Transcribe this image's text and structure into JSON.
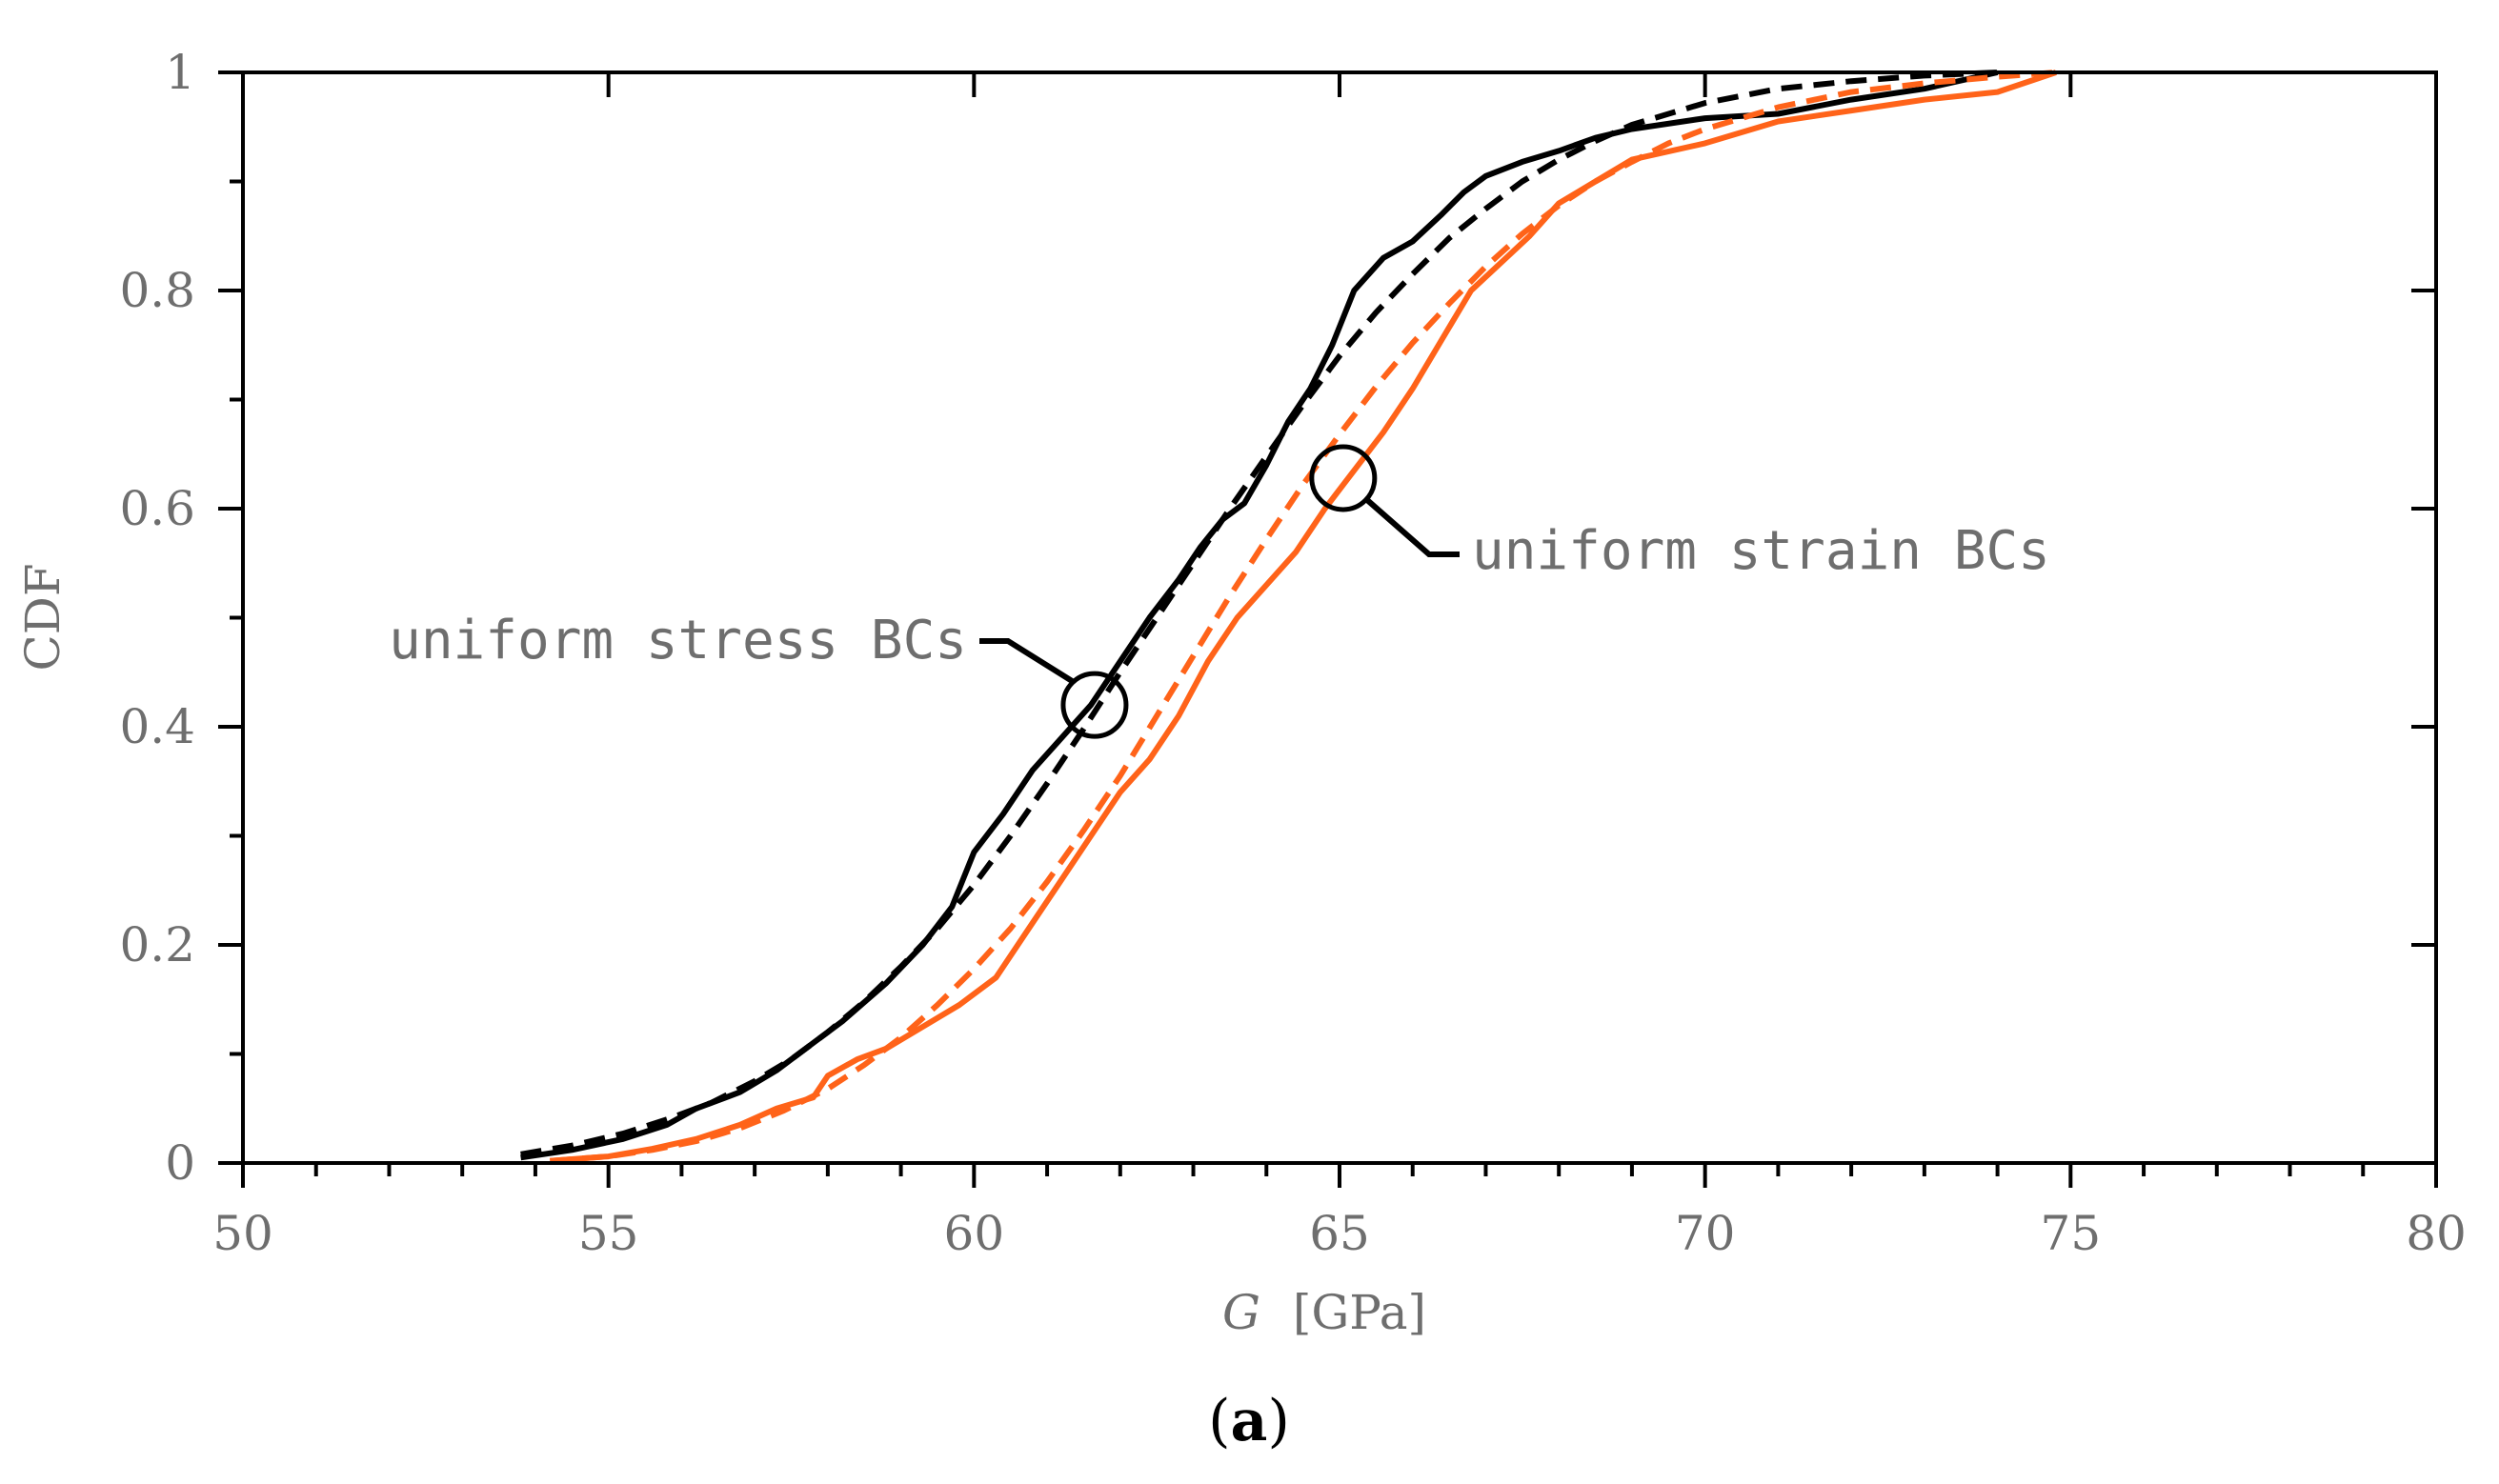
{
  "chart_data": {
    "type": "line",
    "title": "",
    "xlabel": "G",
    "xlabel_unit": "[GPa]",
    "ylabel": "CDF",
    "xlim": [
      50,
      80
    ],
    "ylim": [
      0,
      1
    ],
    "x_ticks": [
      50,
      55,
      60,
      65,
      70,
      75,
      80
    ],
    "y_ticks": [
      0,
      0.2,
      0.4,
      0.6,
      0.8,
      1
    ],
    "x_tick_labels": [
      "50",
      "55",
      "60",
      "65",
      "70",
      "75",
      "80"
    ],
    "y_tick_labels": [
      "0",
      "0.2",
      "0.4",
      "0.6",
      "0.8",
      "1"
    ],
    "grid": false,
    "series": [
      {
        "name": "uniform stress BCs (empirical)",
        "color": "#000000",
        "style": "solid",
        "x": [
          53.8,
          54.5,
          55.2,
          55.8,
          56.2,
          56.8,
          57.3,
          57.8,
          58.2,
          58.8,
          59.3,
          59.7,
          60.0,
          60.4,
          60.8,
          61.2,
          61.6,
          62.0,
          62.4,
          62.8,
          63.1,
          63.4,
          63.7,
          64.0,
          64.3,
          64.6,
          64.9,
          65.2,
          65.6,
          66.0,
          66.4,
          66.7,
          67.0,
          67.5,
          68.0,
          68.5,
          69.0,
          70.0,
          71.0,
          72.0,
          73.0,
          74.0
        ],
        "y": [
          0.005,
          0.012,
          0.022,
          0.035,
          0.05,
          0.065,
          0.085,
          0.11,
          0.13,
          0.165,
          0.2,
          0.235,
          0.285,
          0.32,
          0.36,
          0.39,
          0.42,
          0.46,
          0.5,
          0.535,
          0.565,
          0.59,
          0.605,
          0.64,
          0.68,
          0.71,
          0.75,
          0.8,
          0.83,
          0.845,
          0.87,
          0.89,
          0.905,
          0.918,
          0.928,
          0.94,
          0.948,
          0.958,
          0.962,
          0.975,
          0.985,
          1.0
        ]
      },
      {
        "name": "uniform stress BCs (fit)",
        "color": "#000000",
        "style": "dashed",
        "x": [
          53.8,
          54.5,
          55.2,
          55.8,
          56.4,
          57.0,
          57.5,
          58.0,
          58.5,
          59.0,
          59.5,
          60.0,
          60.5,
          61.0,
          61.5,
          62.0,
          62.5,
          63.0,
          63.5,
          64.0,
          64.5,
          65.0,
          65.5,
          66.0,
          66.5,
          67.0,
          67.5,
          68.0,
          68.5,
          69.0,
          70.0,
          71.0,
          72.0,
          73.0,
          74.0
        ],
        "y": [
          0.008,
          0.016,
          0.027,
          0.04,
          0.055,
          0.075,
          0.095,
          0.12,
          0.148,
          0.18,
          0.215,
          0.255,
          0.3,
          0.348,
          0.398,
          0.45,
          0.5,
          0.55,
          0.6,
          0.648,
          0.695,
          0.74,
          0.78,
          0.815,
          0.848,
          0.875,
          0.9,
          0.92,
          0.937,
          0.952,
          0.972,
          0.985,
          0.992,
          0.997,
          1.0
        ]
      },
      {
        "name": "uniform strain BCs (empirical)",
        "color": "#ff6319",
        "style": "solid",
        "x": [
          54.2,
          55.0,
          55.6,
          56.2,
          56.8,
          57.3,
          57.8,
          58.0,
          58.4,
          58.8,
          59.3,
          59.8,
          60.3,
          60.8,
          61.2,
          61.6,
          62.0,
          62.4,
          62.8,
          63.2,
          63.6,
          64.0,
          64.4,
          64.8,
          65.2,
          65.6,
          66.0,
          66.4,
          66.8,
          67.2,
          67.6,
          68.0,
          68.5,
          69.0,
          70.0,
          71.0,
          72.0,
          73.0,
          74.0,
          74.8
        ],
        "y": [
          0.002,
          0.006,
          0.013,
          0.022,
          0.035,
          0.05,
          0.06,
          0.08,
          0.095,
          0.105,
          0.125,
          0.145,
          0.17,
          0.22,
          0.26,
          0.3,
          0.34,
          0.37,
          0.41,
          0.46,
          0.5,
          0.53,
          0.56,
          0.6,
          0.635,
          0.67,
          0.71,
          0.755,
          0.8,
          0.825,
          0.85,
          0.88,
          0.9,
          0.92,
          0.935,
          0.955,
          0.965,
          0.975,
          0.982,
          1.0
        ]
      },
      {
        "name": "uniform strain BCs (fit)",
        "color": "#ff6319",
        "style": "dashed",
        "x": [
          54.2,
          55.0,
          55.6,
          56.2,
          56.8,
          57.4,
          58.0,
          58.5,
          59.0,
          59.5,
          60.0,
          60.5,
          61.0,
          61.5,
          62.0,
          62.5,
          63.0,
          63.5,
          64.0,
          64.5,
          65.0,
          65.5,
          66.0,
          66.5,
          67.0,
          67.5,
          68.0,
          68.5,
          69.0,
          69.5,
          70.0,
          71.0,
          72.0,
          73.0,
          74.0,
          74.8
        ],
        "y": [
          0.002,
          0.006,
          0.012,
          0.02,
          0.032,
          0.048,
          0.068,
          0.09,
          0.115,
          0.145,
          0.178,
          0.215,
          0.258,
          0.305,
          0.355,
          0.41,
          0.465,
          0.52,
          0.572,
          0.622,
          0.668,
          0.712,
          0.752,
          0.788,
          0.822,
          0.852,
          0.878,
          0.9,
          0.918,
          0.935,
          0.948,
          0.968,
          0.982,
          0.99,
          0.996,
          1.0
        ]
      }
    ],
    "annotations": [
      {
        "text": "uniform stress BCs",
        "circle_at": [
          61.65,
          0.42
        ]
      },
      {
        "text": "uniform strain BCs",
        "circle_at": [
          65.05,
          0.628
        ]
      }
    ],
    "caption": "(a)",
    "caption_letter": "a"
  }
}
